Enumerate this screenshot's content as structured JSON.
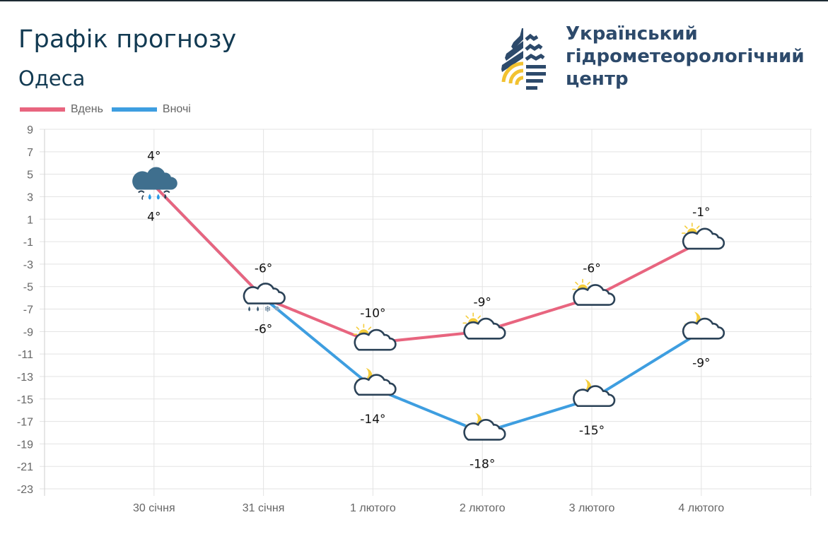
{
  "header": {
    "title": "Графік прогнозу",
    "city": "Одеса",
    "logo_lines": [
      "Український",
      "гідрометеорологічний",
      "центр"
    ]
  },
  "legend": [
    {
      "label": "Вдень",
      "color": "#e8657f"
    },
    {
      "label": "Вночі",
      "color": "#3e9ee0"
    }
  ],
  "colors": {
    "day_line": "#e8657f",
    "night_line": "#3e9ee0",
    "title": "#123a52",
    "logo_blue": "#2d4a6b",
    "logo_yellow": "#f2c230",
    "grid": "#e3e3e3"
  },
  "chart_data": {
    "type": "line",
    "title": "Графік прогнозу",
    "subtitle": "Одеса",
    "xlabel": "",
    "ylabel": "",
    "categories": [
      "30 січня",
      "31 січня",
      "1 лютого",
      "2 лютого",
      "3 лютого",
      "4 лютого"
    ],
    "series": [
      {
        "name": "Вдень",
        "values": [
          4,
          -6,
          -10,
          -9,
          -6,
          -1
        ],
        "labels": [
          "4°",
          "-6°",
          "-10°",
          "-9°",
          "-6°",
          "-1°"
        ]
      },
      {
        "name": "Вночі",
        "values": [
          4,
          -6,
          -14,
          -18,
          -15,
          -9
        ],
        "labels": [
          "4°",
          "-6°",
          "-14°",
          "-18°",
          "-15°",
          "-9°"
        ]
      }
    ],
    "icons_day": [
      "rain-cloud-icon",
      "rain-snow-cloud-icon",
      "partly-sunny-icon",
      "partly-sunny-icon",
      "partly-sunny-icon",
      "partly-sunny-icon"
    ],
    "icons_night": [
      "rain-cloud-icon",
      "rain-snow-cloud-icon",
      "partly-cloudy-night-icon",
      "partly-cloudy-night-icon",
      "partly-cloudy-night-icon",
      "partly-cloudy-night-icon"
    ],
    "yticks": [
      9,
      7,
      5,
      3,
      1,
      -1,
      -3,
      -5,
      -7,
      -9,
      -11,
      -13,
      -15,
      -17,
      -19,
      -21,
      -23
    ],
    "ylim": [
      -23,
      9
    ],
    "grid": true,
    "legend_position": "top-left"
  }
}
